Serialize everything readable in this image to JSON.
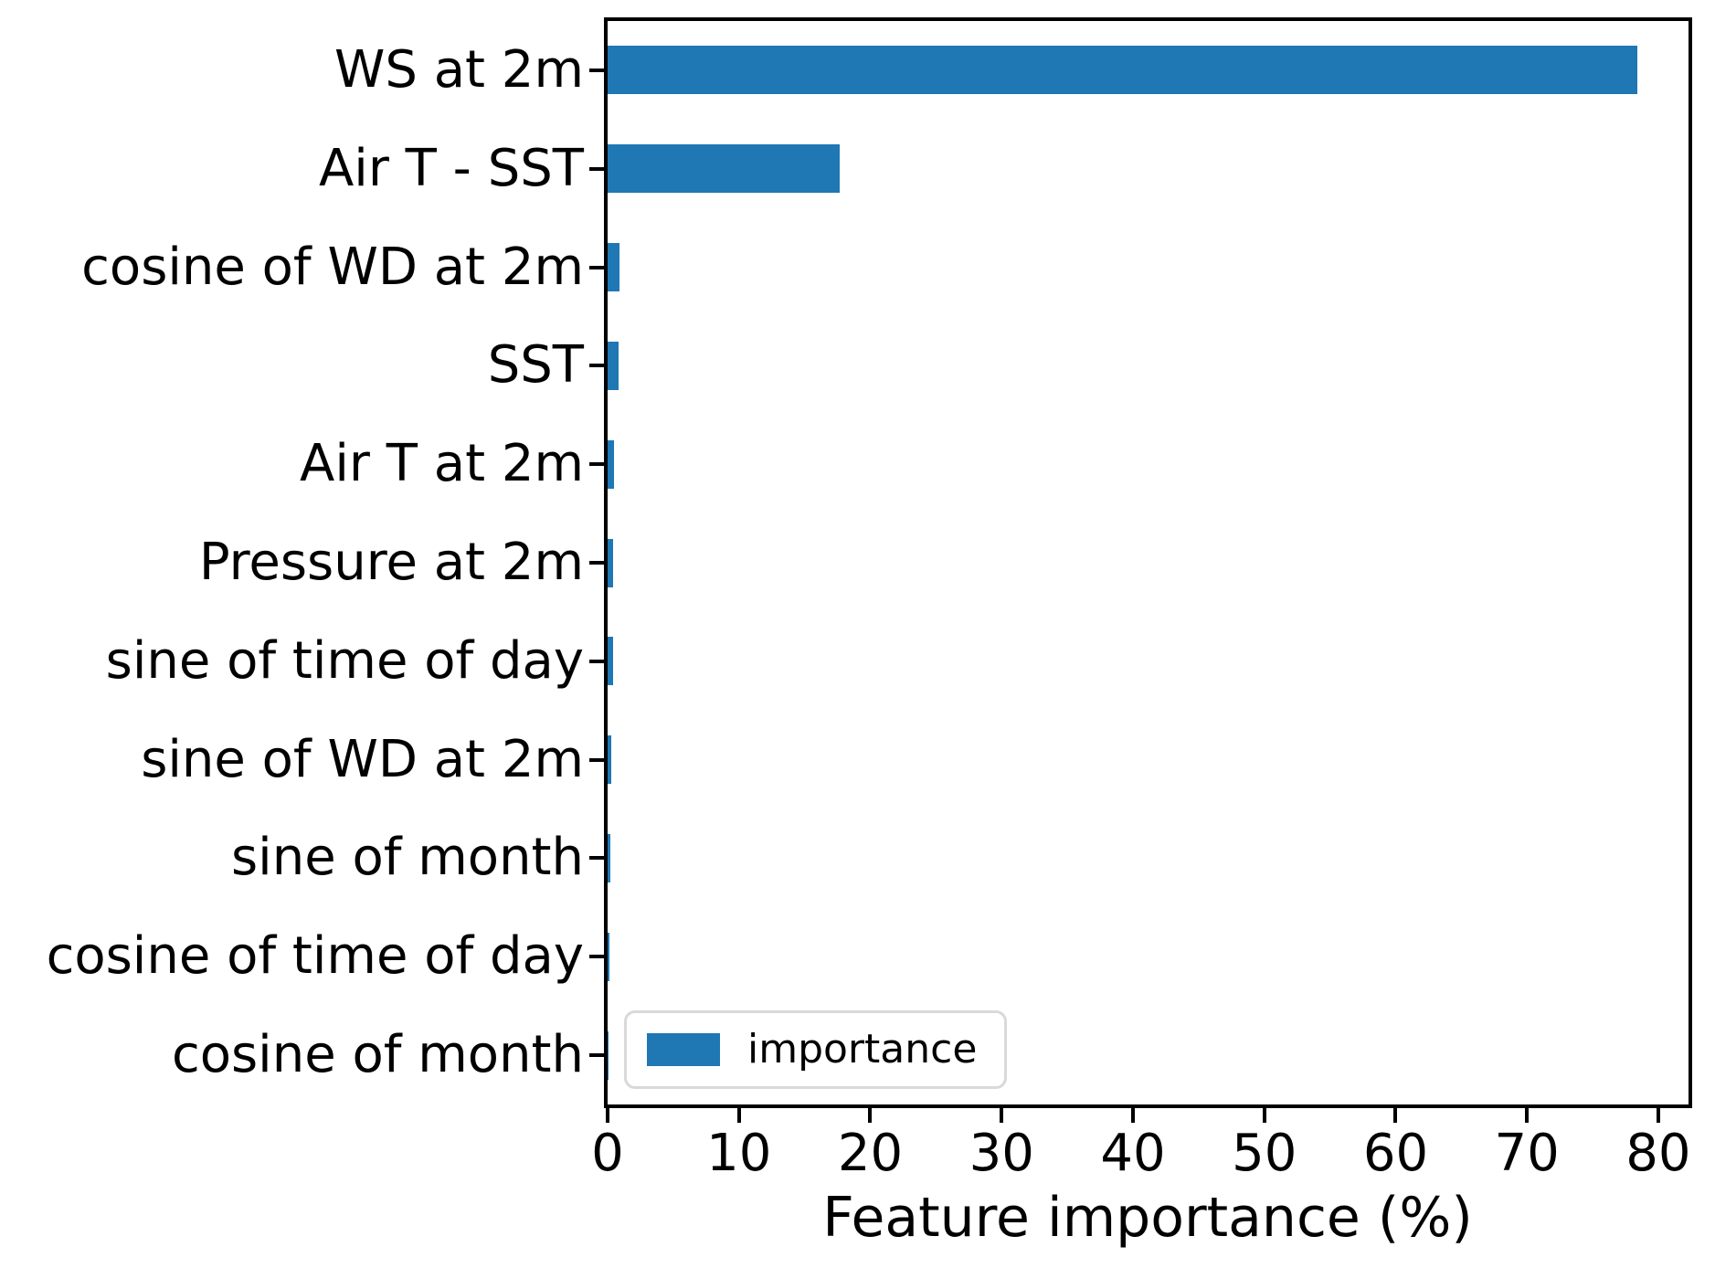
{
  "accent_color": "#1f77b4",
  "spine_color": "#000000",
  "legend": {
    "label": "importance",
    "swatch_color": "#1f77b4"
  },
  "chart_data": {
    "type": "bar",
    "orientation": "horizontal",
    "title": "",
    "xlabel": "Feature importance (%)",
    "ylabel": "",
    "categories": [
      "WS at 2m",
      "Air T - SST",
      "cosine of WD at 2m",
      "SST",
      "Air T at 2m",
      "Pressure at 2m",
      "sine of time of day",
      "sine of WD at 2m",
      "sine of month",
      "cosine of time of day",
      "cosine of month"
    ],
    "series": [
      {
        "name": "importance",
        "values": [
          78.4,
          17.7,
          0.9,
          0.85,
          0.5,
          0.45,
          0.4,
          0.25,
          0.2,
          0.15,
          0.05
        ]
      }
    ],
    "xticks": [
      0,
      10,
      20,
      30,
      40,
      50,
      60,
      70,
      80
    ],
    "xtick_labels": [
      "0",
      "10",
      "20",
      "30",
      "40",
      "50",
      "60",
      "70",
      "80"
    ],
    "xlim": [
      0,
      82.3
    ],
    "grid": false,
    "legend_position": "lower left",
    "bar_color": "#1f77b4"
  }
}
